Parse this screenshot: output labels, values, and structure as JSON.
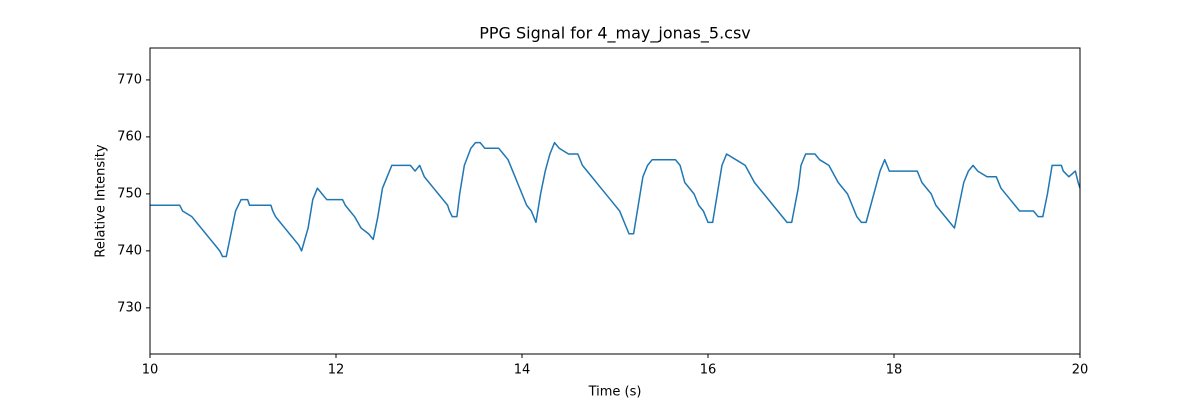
{
  "chart_data": {
    "type": "line",
    "title": "PPG Signal for 4_may_jonas_5.csv",
    "x_label": "Time (s)",
    "y_label": "Relative Intensity",
    "xlim": [
      10,
      20
    ],
    "ylim": [
      721.9,
      775.6
    ],
    "xticks": [
      10,
      12,
      14,
      16,
      18,
      20
    ],
    "yticks": [
      730,
      740,
      750,
      760,
      770
    ],
    "grid": false,
    "series": [
      {
        "color": "#1f77b4",
        "x": [
          10.0,
          10.32,
          10.35,
          10.45,
          10.5,
          10.55,
          10.6,
          10.65,
          10.7,
          10.75,
          10.78,
          10.82,
          10.87,
          10.92,
          10.98,
          11.05,
          11.07,
          11.3,
          11.32,
          11.35,
          11.4,
          11.45,
          11.5,
          11.55,
          11.6,
          11.63,
          11.7,
          11.75,
          11.8,
          11.85,
          11.9,
          12.07,
          12.1,
          12.15,
          12.2,
          12.27,
          12.35,
          12.4,
          12.45,
          12.5,
          12.55,
          12.6,
          12.8,
          12.85,
          12.9,
          12.95,
          13.0,
          13.05,
          13.1,
          13.15,
          13.2,
          13.22,
          13.25,
          13.3,
          13.33,
          13.38,
          13.45,
          13.5,
          13.55,
          13.6,
          13.75,
          13.8,
          13.85,
          13.9,
          13.95,
          14.0,
          14.05,
          14.1,
          14.15,
          14.2,
          14.25,
          14.3,
          14.35,
          14.4,
          14.5,
          14.6,
          14.65,
          14.75,
          14.85,
          14.95,
          15.05,
          15.1,
          15.15,
          15.2,
          15.25,
          15.3,
          15.35,
          15.4,
          15.65,
          15.7,
          15.75,
          15.85,
          15.9,
          15.95,
          16.0,
          16.05,
          16.1,
          16.15,
          16.2,
          16.3,
          16.4,
          16.5,
          16.6,
          16.7,
          16.75,
          16.85,
          16.9,
          16.97,
          17.0,
          17.05,
          17.15,
          17.2,
          17.3,
          17.4,
          17.5,
          17.55,
          17.6,
          17.65,
          17.7,
          17.8,
          17.85,
          17.9,
          17.95,
          18.25,
          18.3,
          18.4,
          18.45,
          18.5,
          18.6,
          18.65,
          18.7,
          18.75,
          18.8,
          18.85,
          18.9,
          19.0,
          19.1,
          19.15,
          19.25,
          19.3,
          19.35,
          19.5,
          19.55,
          19.6,
          19.65,
          19.7,
          19.8,
          19.82,
          19.88,
          19.95,
          19.98,
          20.0
        ],
        "values": [
          748,
          748,
          747,
          746,
          745,
          744,
          743,
          742,
          741,
          740,
          739,
          739,
          743,
          747,
          749,
          749,
          748,
          748,
          747,
          746,
          745,
          744,
          743,
          742,
          741,
          740,
          744,
          749,
          751,
          750,
          749,
          749,
          748,
          747,
          746,
          744,
          743,
          742,
          746,
          751,
          753,
          755,
          755,
          754,
          755,
          753,
          752,
          751,
          750,
          749,
          748,
          747,
          746,
          746,
          750,
          755,
          758,
          759,
          759,
          758,
          758,
          757,
          756,
          754,
          752,
          750,
          748,
          747,
          745,
          750,
          754,
          757,
          759,
          758,
          757,
          757,
          755,
          753,
          751,
          749,
          747,
          745,
          743,
          743,
          748,
          753,
          755,
          756,
          756,
          755,
          752,
          750,
          748,
          747,
          745,
          745,
          750,
          755,
          757,
          756,
          755,
          752,
          750,
          748,
          747,
          745,
          745,
          751,
          755,
          757,
          757,
          756,
          755,
          752,
          750,
          748,
          746,
          745,
          745,
          751,
          754,
          756,
          754,
          754,
          752,
          750,
          748,
          747,
          745,
          744,
          748,
          752,
          754,
          755,
          754,
          753,
          753,
          751,
          749,
          748,
          747,
          747,
          746,
          746,
          750,
          755,
          755,
          754,
          753,
          754,
          752,
          751
        ]
      }
    ]
  }
}
